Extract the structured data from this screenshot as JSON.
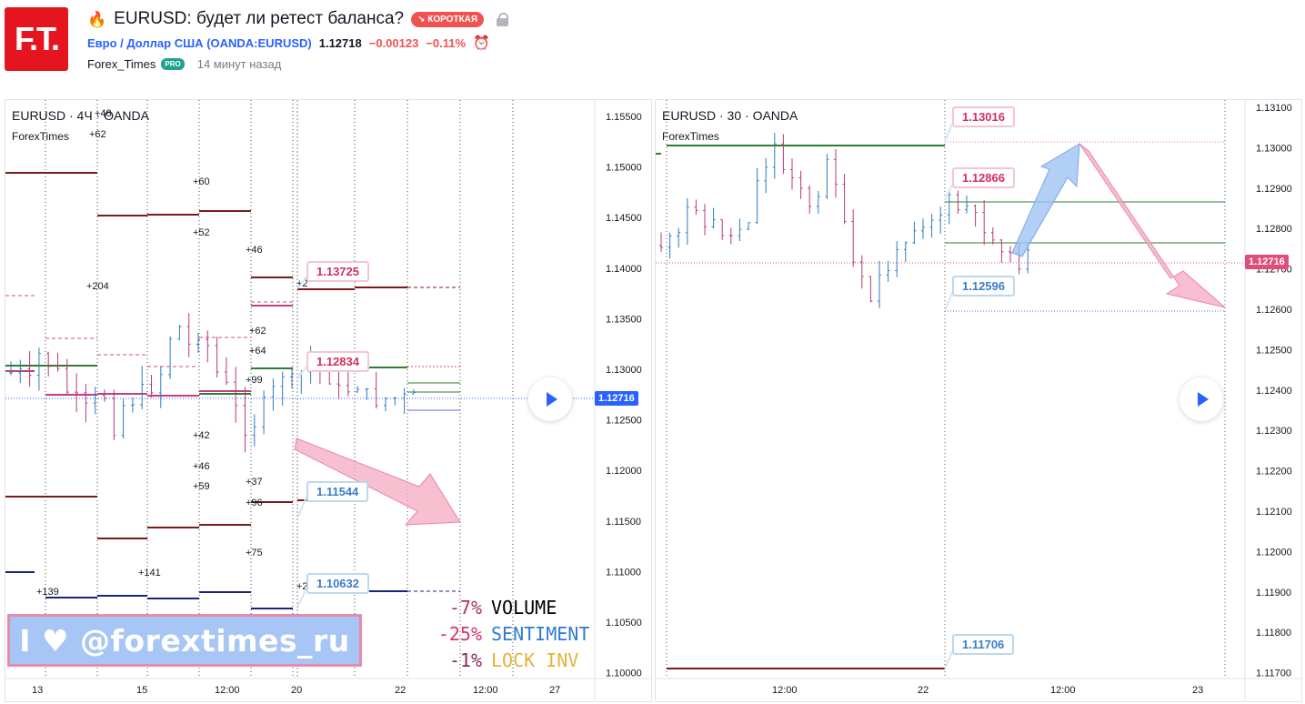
{
  "logo": {
    "text": "F.T."
  },
  "idea": {
    "flame_icon": "flame-icon",
    "title": "EURUSD: будет ли ретест баланса?",
    "direction_badge": "↘ КОРОТКАЯ",
    "symbol_name": "Евро / Доллар США",
    "symbol_ticker": "(OANDA:EURUSD)",
    "price": "1.12718",
    "change": "−0.00123",
    "change_pct": "−0.11%",
    "author": "Forex_Times",
    "author_badge": "PRO",
    "published": "14 минут назад"
  },
  "colors": {
    "accent": "#2962ff",
    "short": "#ef5350",
    "level_dark_red": "#7a1a1a",
    "level_green": "#2e7d32",
    "level_blue": "#1a237e",
    "bull_candle": "#2f7bbf",
    "bear_candle": "#b83a75"
  },
  "chart_4h": {
    "title": "EURUSD · 4Ч · OANDA",
    "subtitle": "ForexTimes",
    "y_ticks": [
      "1.15500",
      "1.15000",
      "1.14500",
      "1.14000",
      "1.13500",
      "1.13000",
      "1.12500",
      "1.12000",
      "1.11500",
      "1.11000",
      "1.10500",
      "1.10000"
    ],
    "x_ticks": [
      "13",
      "15",
      "12:00",
      "20",
      "22",
      "12:00",
      "27"
    ],
    "current_price": "1.12716",
    "callouts": [
      {
        "value": "1.13725",
        "style": "red"
      },
      {
        "value": "1.12834",
        "style": "red"
      },
      {
        "value": "1.11544",
        "style": "blue"
      },
      {
        "value": "1.10632",
        "style": "blue"
      }
    ],
    "annotations_magenta": [
      "+48",
      "+62",
      "+60",
      "+52",
      "+46",
      "+204",
      "+62",
      "+64",
      "+99",
      "+2"
    ],
    "annotations_blue": [
      "+42",
      "+46",
      "+59",
      "+37",
      "+96",
      "+75",
      "+141",
      "+139",
      "+2"
    ]
  },
  "chart_30m": {
    "title": "EURUSD · 30 · OANDA",
    "subtitle": "ForexTimes",
    "y_ticks": [
      "1.13100",
      "1.13000",
      "1.12900",
      "1.12800",
      "1.12700",
      "1.12600",
      "1.12500",
      "1.12400",
      "1.12300",
      "1.12200",
      "1.12100",
      "1.12000",
      "1.11900",
      "1.11800",
      "1.11700"
    ],
    "x_ticks": [
      "12:00",
      "22",
      "12:00",
      "23"
    ],
    "current_price": "1.12716",
    "callouts": [
      {
        "value": "1.13016",
        "style": "red"
      },
      {
        "value": "1.12866",
        "style": "red"
      },
      {
        "value": "1.12596",
        "style": "blue"
      },
      {
        "value": "1.11706",
        "style": "blue"
      }
    ]
  },
  "banner": {
    "text": "I ♥ @forextimes_ru"
  },
  "legend": [
    {
      "pct": "-7%",
      "label": "VOLUME"
    },
    {
      "pct": "-25%",
      "label": "SENTIMENT"
    },
    {
      "pct": "-1%",
      "label": "LOCK INV"
    }
  ]
}
